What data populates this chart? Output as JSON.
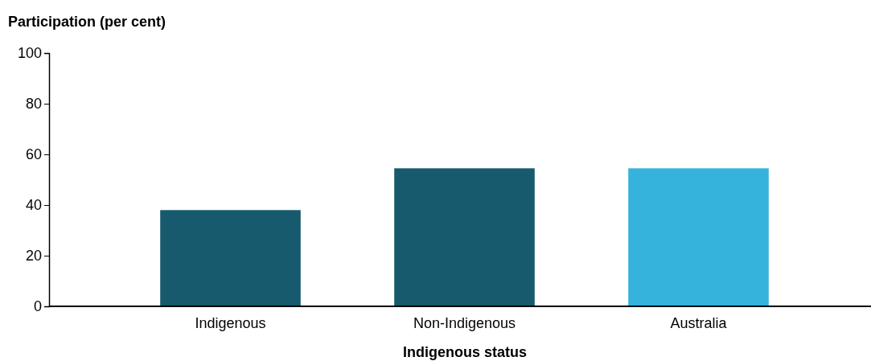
{
  "chart_data": {
    "type": "bar",
    "ylabel": "Participation (per cent)",
    "xlabel": "Indigenous status",
    "categories": [
      "Indigenous",
      "Non-Indigenous",
      "Australia"
    ],
    "values": [
      38,
      54.5,
      54.5
    ],
    "colors": [
      "#175a6e",
      "#175a6e",
      "#35b3dc"
    ],
    "ylim": [
      0,
      100
    ],
    "yticks": [
      0,
      20,
      40,
      60,
      80,
      100
    ],
    "grid": false
  }
}
